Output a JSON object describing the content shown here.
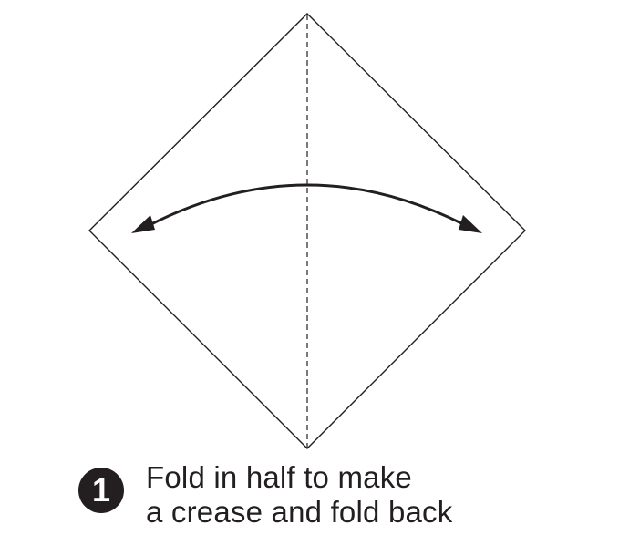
{
  "step": {
    "number": "1",
    "instruction_lines": [
      "Fold in half to make",
      "a crease and fold back"
    ]
  },
  "colors": {
    "ink": "#231f20",
    "paper": "#ffffff"
  },
  "icons": {
    "fold_arrow": "double-headed-curved-arrow-icon",
    "crease": "dashed-crease-line"
  }
}
